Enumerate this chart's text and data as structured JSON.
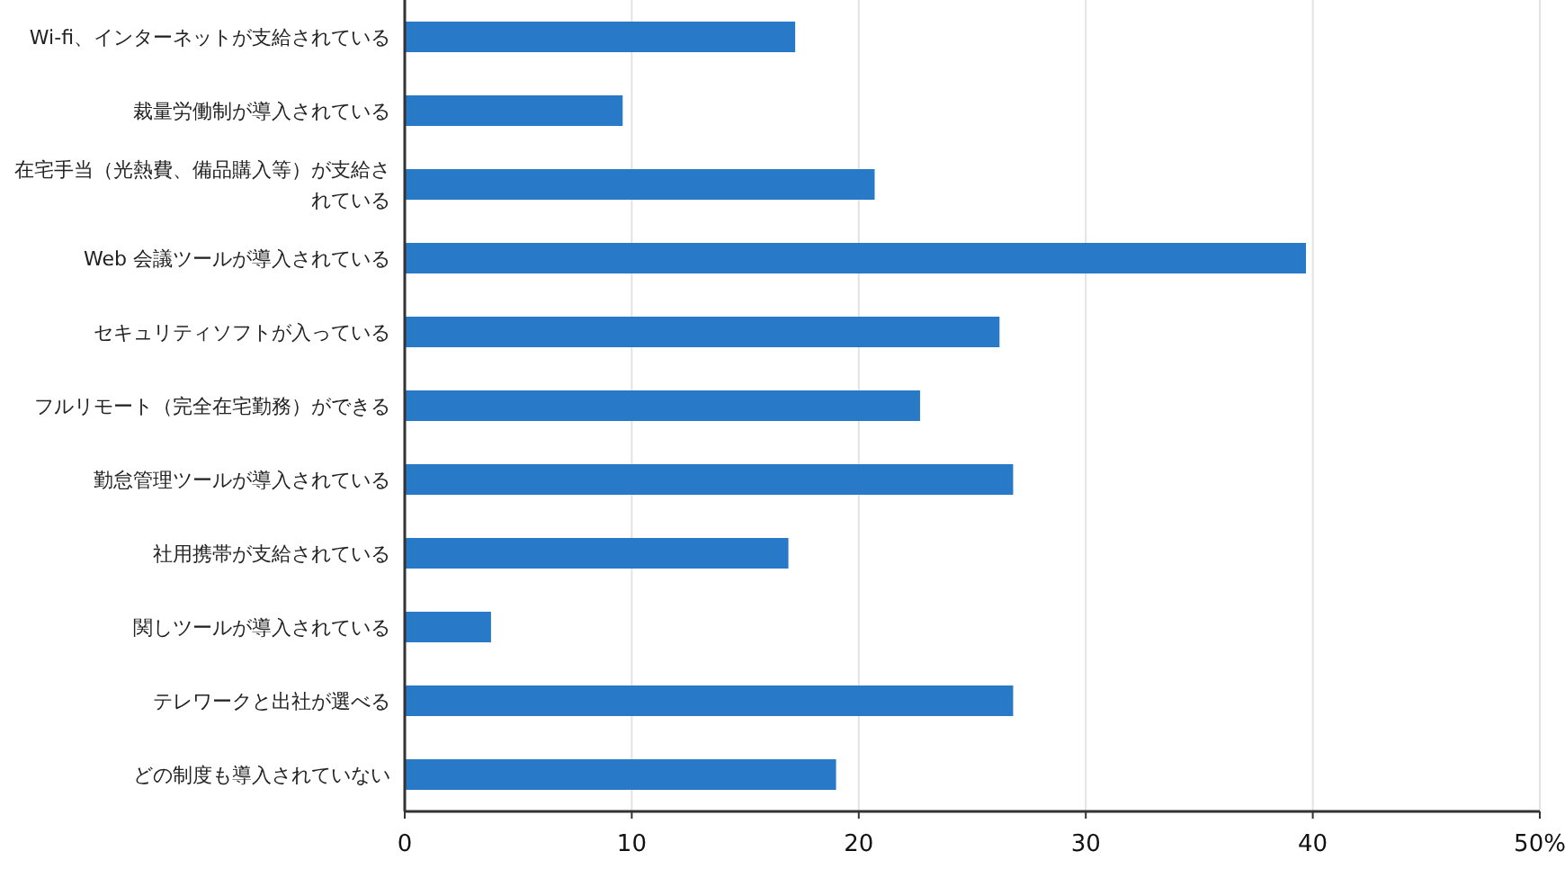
{
  "chart_data": {
    "type": "bar",
    "orientation": "horizontal",
    "categories": [
      "Wi-fi、インターネットが支給されている",
      "裁量労働制が導入されている",
      "在宅手当（光熱費、備品購入等）が支給されている",
      "Web 会議ツールが導入されている",
      "セキュリティソフトが入っている",
      "フルリモート（完全在宅勤務）ができる",
      "勤怠管理ツールが導入されている",
      "社用携帯が支給されている",
      "関しツールが導入されている",
      "テレワークと出社が選べる",
      "どの制度も導入されていない"
    ],
    "values": [
      17.2,
      9.6,
      20.7,
      39.7,
      26.2,
      22.7,
      26.8,
      16.9,
      3.8,
      26.8,
      19.0
    ],
    "color": "#2979c9",
    "xlim": [
      0,
      50
    ],
    "xticks": [
      0,
      10,
      20,
      30,
      40,
      {
        "value": 50,
        "label": "50%"
      }
    ],
    "grid": "x"
  }
}
